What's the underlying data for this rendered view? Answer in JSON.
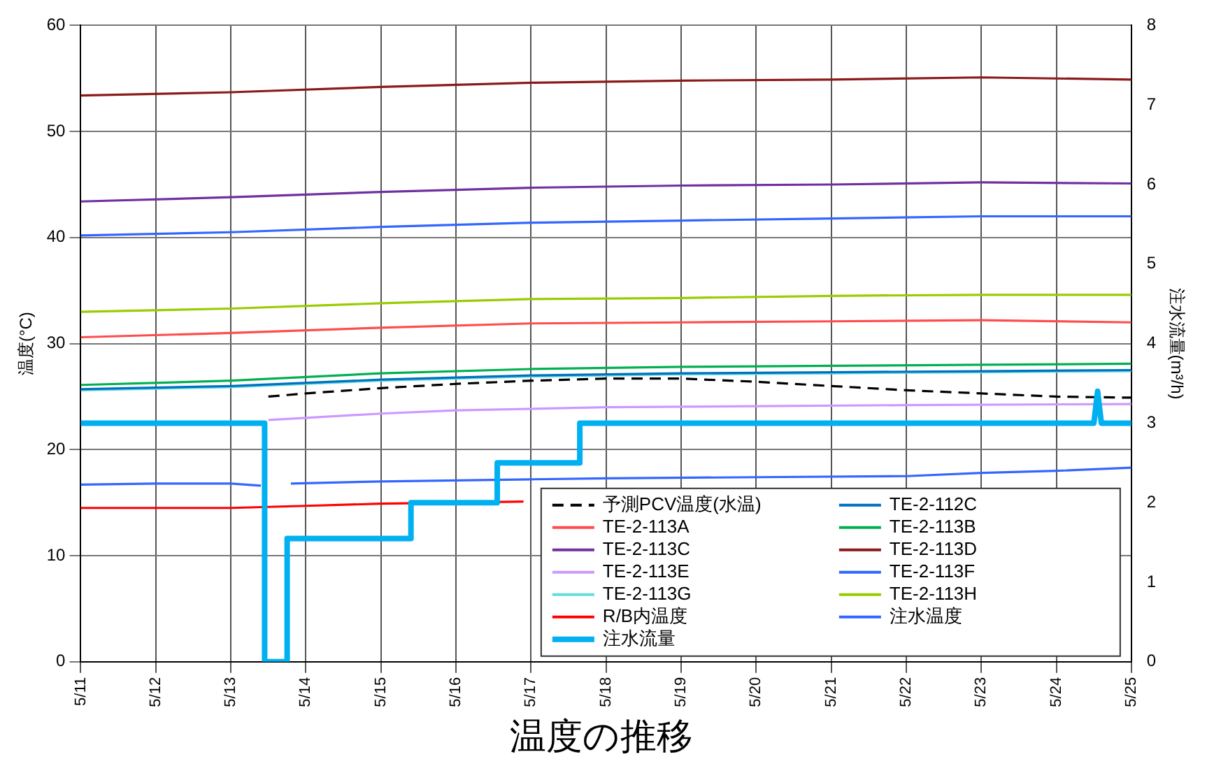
{
  "chart_data": {
    "type": "line",
    "title": "温度の推移",
    "ylabel": "温度(°C)",
    "y2label": "注水流量(m³/h)",
    "xlim": [
      "--05-11",
      "--05-25"
    ],
    "xticks": [
      {
        "value": "--05-11",
        "label": "5/11"
      },
      {
        "value": "--05-12",
        "label": "5/12"
      },
      {
        "value": "--05-13",
        "label": "5/13"
      },
      {
        "value": "--05-14",
        "label": "5/14"
      },
      {
        "value": "--05-15",
        "label": "5/15"
      },
      {
        "value": "--05-16",
        "label": "5/16"
      },
      {
        "value": "--05-17",
        "label": "5/17"
      },
      {
        "value": "--05-18",
        "label": "5/18"
      },
      {
        "value": "--05-19",
        "label": "5/19"
      },
      {
        "value": "--05-20",
        "label": "5/20"
      },
      {
        "value": "--05-21",
        "label": "5/21"
      },
      {
        "value": "--05-22",
        "label": "5/22"
      },
      {
        "value": "--05-23",
        "label": "5/23"
      },
      {
        "value": "--05-24",
        "label": "5/24"
      },
      {
        "value": "--05-25",
        "label": "5/25"
      }
    ],
    "ylim": [
      0,
      60
    ],
    "yticks": [
      0,
      10,
      20,
      30,
      40,
      50,
      60
    ],
    "y2lim": [
      0,
      8
    ],
    "y2ticks": [
      0,
      1,
      2,
      3,
      4,
      5,
      6,
      7,
      8
    ],
    "grid": true,
    "legend": "bottom right",
    "marker": "none",
    "series": [
      {
        "name": "予測PCV温度(水温)",
        "color": "#000000",
        "line_style": "dashed",
        "x": [
          "--05-13T12:00",
          "--05-14",
          "--05-15",
          "--05-16",
          "--05-17",
          "--05-18",
          "--05-19",
          "--05-20",
          "--05-21",
          "--05-22",
          "--05-23",
          "--05-24",
          "--05-25"
        ],
        "values": [
          25.0,
          25.3,
          25.8,
          26.2,
          26.5,
          26.7,
          26.7,
          26.4,
          26.0,
          25.6,
          25.3,
          25.0,
          24.9
        ]
      },
      {
        "name": "TE-2-112C",
        "color": "#0070c0",
        "x": [
          "--05-11",
          "--05-13",
          "--05-15",
          "--05-17",
          "--05-19",
          "--05-21",
          "--05-23",
          "--05-25"
        ],
        "values": [
          25.7,
          26.0,
          26.6,
          27.0,
          27.2,
          27.3,
          27.4,
          27.5
        ]
      },
      {
        "name": "TE-2-113A",
        "color": "#ff4d4d",
        "x": [
          "--05-11",
          "--05-13",
          "--05-15",
          "--05-17",
          "--05-19",
          "--05-21",
          "--05-23",
          "--05-25"
        ],
        "values": [
          30.6,
          31.0,
          31.5,
          31.9,
          32.0,
          32.1,
          32.2,
          32.0
        ]
      },
      {
        "name": "TE-2-113B",
        "color": "#00b050",
        "x": [
          "--05-11",
          "--05-13",
          "--05-15",
          "--05-17",
          "--05-19",
          "--05-21",
          "--05-23",
          "--05-25"
        ],
        "values": [
          26.1,
          26.5,
          27.2,
          27.6,
          27.8,
          27.9,
          28.0,
          28.1
        ]
      },
      {
        "name": "TE-2-113C",
        "color": "#7030a0",
        "x": [
          "--05-11",
          "--05-13",
          "--05-15",
          "--05-17",
          "--05-19",
          "--05-21",
          "--05-23",
          "--05-25"
        ],
        "values": [
          43.4,
          43.8,
          44.3,
          44.7,
          44.9,
          45.0,
          45.2,
          45.1
        ]
      },
      {
        "name": "TE-2-113D",
        "color": "#8b1a1a",
        "x": [
          "--05-11",
          "--05-13",
          "--05-15",
          "--05-17",
          "--05-19",
          "--05-21",
          "--05-23",
          "--05-25"
        ],
        "values": [
          53.4,
          53.7,
          54.2,
          54.6,
          54.8,
          54.9,
          55.1,
          54.9
        ]
      },
      {
        "name": "TE-2-113E",
        "color": "#cc99ff",
        "x": [
          "--05-13T12:00",
          "--05-14",
          "--05-15",
          "--05-16",
          "--05-18",
          "--05-20",
          "--05-22",
          "--05-25"
        ],
        "values": [
          22.8,
          23.0,
          23.4,
          23.7,
          24.0,
          24.1,
          24.2,
          24.3
        ]
      },
      {
        "name": "TE-2-113F",
        "color": "#3366ff",
        "x": [
          "--05-11",
          "--05-13",
          "--05-15",
          "--05-17",
          "--05-19",
          "--05-21",
          "--05-23",
          "--05-25"
        ],
        "values": [
          40.2,
          40.5,
          41.0,
          41.4,
          41.6,
          41.8,
          42.0,
          42.0
        ]
      },
      {
        "name": "TE-2-113G",
        "color": "#66dddd",
        "x": [
          "--05-11",
          "--05-13",
          "--05-15",
          "--05-17",
          "--05-19",
          "--05-21",
          "--05-23",
          "--05-25"
        ],
        "values": [
          25.6,
          25.9,
          26.5,
          26.9,
          27.1,
          27.2,
          27.3,
          27.4
        ]
      },
      {
        "name": "TE-2-113H",
        "color": "#99cc00",
        "x": [
          "--05-11",
          "--05-13",
          "--05-15",
          "--05-17",
          "--05-19",
          "--05-21",
          "--05-23",
          "--05-25"
        ],
        "values": [
          33.0,
          33.3,
          33.8,
          34.2,
          34.3,
          34.5,
          34.6,
          34.6
        ]
      },
      {
        "name": "R/B内温度",
        "color": "#ff0000",
        "x": [
          "--05-11",
          "--05-13",
          "--05-14",
          "--05-15",
          "--05-16",
          "--05-16T21:36"
        ],
        "values": [
          14.5,
          14.5,
          14.7,
          14.9,
          15.0,
          15.1
        ]
      },
      {
        "name": "注水温度",
        "color": "#3366ff",
        "x": [
          "--05-11",
          "--05-12",
          "--05-13",
          "--05-13T09:36",
          "--05-13T14:24",
          "--05-13T19:12",
          "--05-15",
          "--05-16",
          "--05-17",
          "--05-18",
          "--05-20",
          "--05-22",
          "--05-23",
          "--05-24",
          "--05-25"
        ],
        "values": [
          16.7,
          16.8,
          16.8,
          16.6,
          null,
          16.8,
          17.0,
          17.1,
          17.2,
          17.3,
          17.4,
          17.5,
          17.8,
          18.0,
          18.3
        ]
      },
      {
        "name": "注水流量",
        "color": "#00b0f0",
        "axis": "y2",
        "x": [
          "--05-11",
          "--05-13T10:48",
          "--05-13T10:48",
          "--05-13T18:00",
          "--05-13T18:00",
          "--05-15T09:36",
          "--05-15T09:36",
          "--05-16T13:12",
          "--05-16T13:12",
          "--05-17T15:36",
          "--05-17T15:36",
          "--05-24T12:00",
          "--05-24T13:12",
          "--05-24T14:24",
          "--05-25"
        ],
        "values": [
          3.0,
          3.0,
          0,
          0,
          1.55,
          1.55,
          2.0,
          2.0,
          2.5,
          2.5,
          3.0,
          3.0,
          3.4,
          3.0,
          3.0
        ]
      }
    ]
  }
}
